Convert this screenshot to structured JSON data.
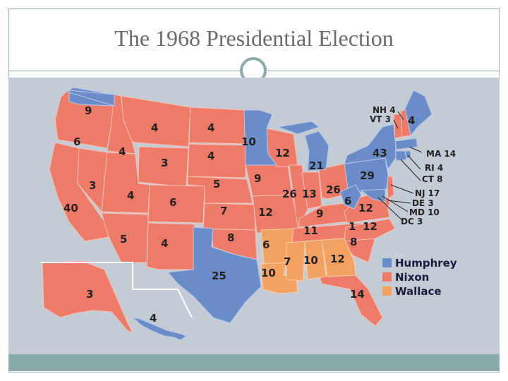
{
  "slide": {
    "title": "The 1968 Presidential Election"
  },
  "colors": {
    "humphrey": "#6a8cc8",
    "nixon": "#ee7a68",
    "wallace": "#f4a261",
    "water": "#c3ccd4",
    "accent": "#8aa9a9"
  },
  "legend": [
    {
      "name": "Humphrey",
      "color": "#6a8cc8"
    },
    {
      "name": "Nixon",
      "color": "#ee7a68"
    },
    {
      "name": "Wallace",
      "color": "#f4a261"
    }
  ],
  "state_labels": [
    {
      "id": "wa",
      "text": "9"
    },
    {
      "id": "or",
      "text": "6"
    },
    {
      "id": "ca",
      "text": "40"
    },
    {
      "id": "nv",
      "text": "3"
    },
    {
      "id": "id",
      "text": "4"
    },
    {
      "id": "mt",
      "text": "4"
    },
    {
      "id": "wy",
      "text": "3"
    },
    {
      "id": "ut",
      "text": "4"
    },
    {
      "id": "az",
      "text": "5"
    },
    {
      "id": "co",
      "text": "6"
    },
    {
      "id": "nm",
      "text": "4"
    },
    {
      "id": "nd",
      "text": "4"
    },
    {
      "id": "sd",
      "text": "4"
    },
    {
      "id": "ne",
      "text": "5"
    },
    {
      "id": "ks",
      "text": "7"
    },
    {
      "id": "ok",
      "text": "8"
    },
    {
      "id": "tx",
      "text": "25"
    },
    {
      "id": "mn",
      "text": "10"
    },
    {
      "id": "ia",
      "text": "9"
    },
    {
      "id": "mo",
      "text": "12"
    },
    {
      "id": "ar",
      "text": "6"
    },
    {
      "id": "la",
      "text": "10"
    },
    {
      "id": "wi",
      "text": "12"
    },
    {
      "id": "il",
      "text": "26"
    },
    {
      "id": "mi",
      "text": "21"
    },
    {
      "id": "in",
      "text": "13"
    },
    {
      "id": "oh",
      "text": "26"
    },
    {
      "id": "ky",
      "text": "9"
    },
    {
      "id": "tn",
      "text": "11"
    },
    {
      "id": "ms",
      "text": "7"
    },
    {
      "id": "al",
      "text": "10"
    },
    {
      "id": "ga",
      "text": "12"
    },
    {
      "id": "fl",
      "text": "14"
    },
    {
      "id": "sc",
      "text": "8"
    },
    {
      "id": "nc_extra",
      "text": "1"
    },
    {
      "id": "nc",
      "text": "12"
    },
    {
      "id": "va",
      "text": "12"
    },
    {
      "id": "wv",
      "text": "6"
    },
    {
      "id": "pa",
      "text": "29"
    },
    {
      "id": "ny",
      "text": "43"
    },
    {
      "id": "me",
      "text": "4"
    },
    {
      "id": "ak",
      "text": "3"
    },
    {
      "id": "hi",
      "text": "4"
    }
  ],
  "callouts": [
    {
      "id": "nh",
      "text": "NH 4"
    },
    {
      "id": "vt",
      "text": "VT 3"
    },
    {
      "id": "ma",
      "text": "MA 14"
    },
    {
      "id": "ri",
      "text": "RI 4"
    },
    {
      "id": "ct",
      "text": "CT 8"
    },
    {
      "id": "nj",
      "text": "NJ 17"
    },
    {
      "id": "de",
      "text": "DE 3"
    },
    {
      "id": "md",
      "text": "MD 10"
    },
    {
      "id": "dc",
      "text": "DC 3"
    }
  ]
}
